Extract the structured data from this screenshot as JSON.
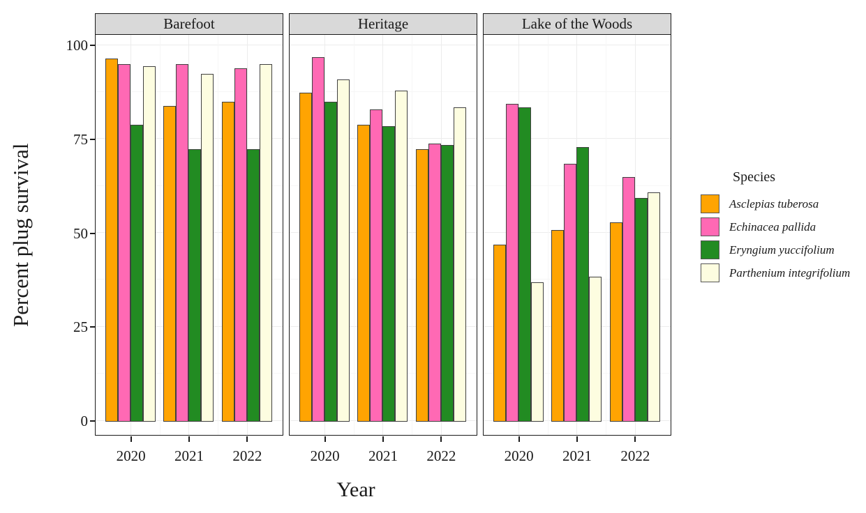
{
  "chart_data": {
    "type": "bar",
    "title": "",
    "xlabel": "Year",
    "ylabel": "Percent plug survival",
    "legend_title": "Species",
    "legend_position": "right",
    "ylim": [
      0,
      100
    ],
    "yticks": [
      0,
      25,
      50,
      75,
      100
    ],
    "grid": "major and minor gridlines, light gray on white panel",
    "categories": [
      "2020",
      "2021",
      "2022"
    ],
    "series": [
      {
        "name": "Asclepias tuberosa",
        "color": "#FFA402"
      },
      {
        "name": "Echinacea pallida",
        "color": "#FF69B4"
      },
      {
        "name": "Eryngium yuccifolium",
        "color": "#228B22"
      },
      {
        "name": "Parthenium integrifolium",
        "color": "#FDFDE0"
      }
    ],
    "facets": [
      {
        "label": "Barefoot",
        "values": [
          [
            96.5,
            84,
            85
          ],
          [
            95,
            95,
            94
          ],
          [
            79,
            72.5,
            72.5
          ],
          [
            94.5,
            92.5,
            95
          ]
        ]
      },
      {
        "label": "Heritage",
        "values": [
          [
            87.5,
            79,
            72.5
          ],
          [
            97,
            83,
            74
          ],
          [
            85,
            78.5,
            73.5
          ],
          [
            91,
            88,
            83.5
          ]
        ]
      },
      {
        "label": "Lake of the Woods",
        "values": [
          [
            47,
            51,
            53
          ],
          [
            84.5,
            68.5,
            65
          ],
          [
            83.5,
            73,
            59.5
          ],
          [
            37,
            38.5,
            61
          ]
        ]
      }
    ]
  },
  "style": {
    "strip_background": "#D9D9D9",
    "panel_border": "#1a1a1a",
    "bar_border": "#404040",
    "grid_major": "#ececec",
    "grid_minor": "#f6f6f6",
    "text_color": "#1a1a1a"
  }
}
